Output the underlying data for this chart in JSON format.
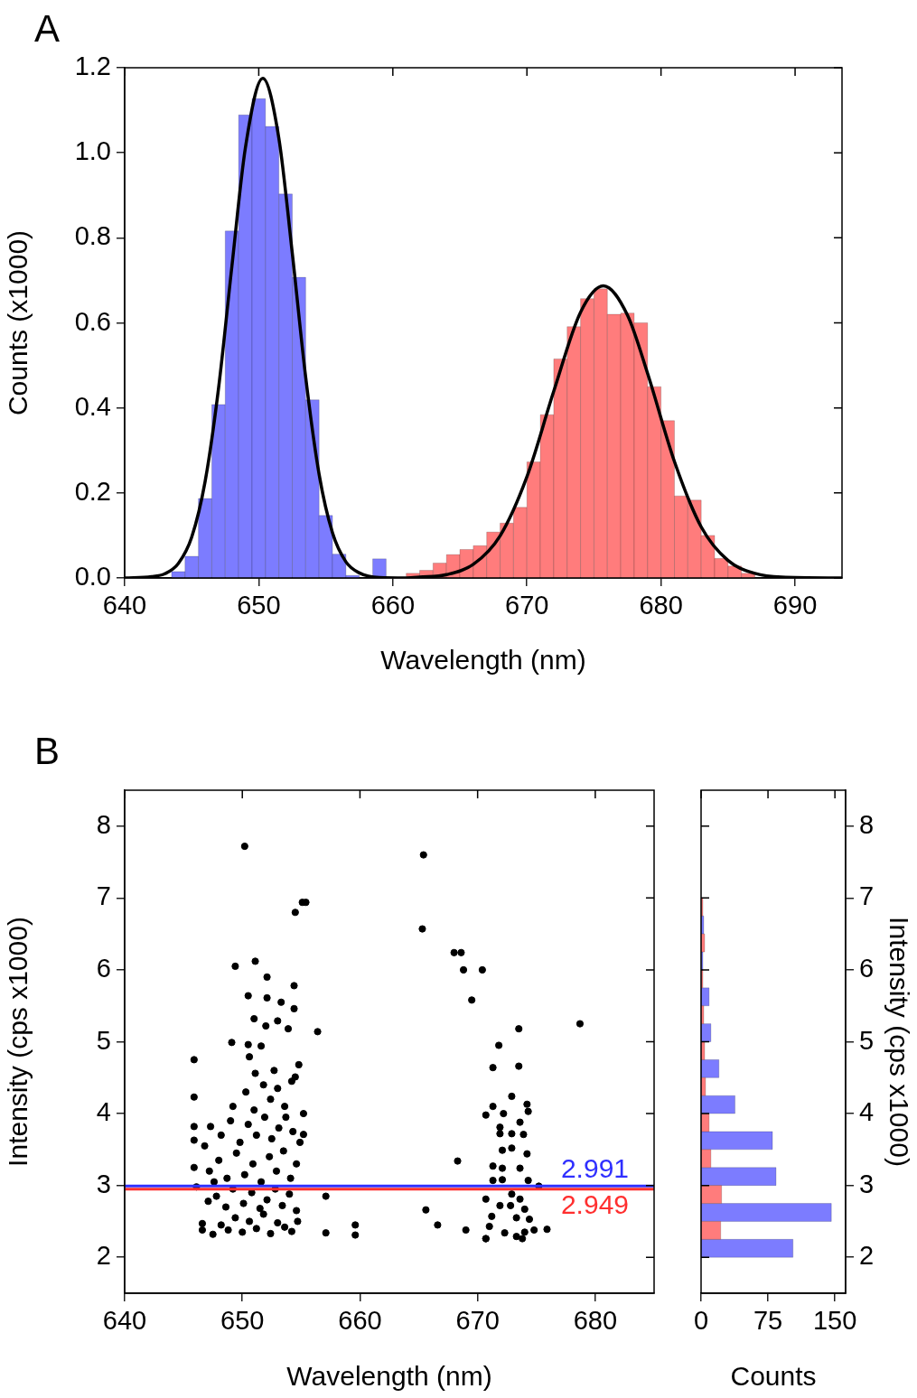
{
  "chart_data": [
    {
      "type": "histogram",
      "title": "A",
      "xlabel": "Wavelength (nm)",
      "ylabel": "Counts (x1000)",
      "xlim": [
        640,
        693.5
      ],
      "xticks": [
        640,
        650,
        660,
        670,
        680,
        690
      ],
      "ylim": [
        0,
        1.2
      ],
      "yticks": [
        {
          "value": 0,
          "label": "0.0"
        },
        0.2,
        0.4,
        0.6,
        0.8,
        {
          "value": 1,
          "label": "1.0"
        },
        1.2
      ],
      "grid": false,
      "series": [
        {
          "color": "#7c7cff",
          "bins": [
            643.5,
            644.5,
            645.5,
            646.5,
            647.5,
            648.5,
            649.5,
            650.5,
            651.5,
            652.5,
            653.5,
            654.5,
            655.5,
            656.5,
            657.5,
            658.5,
            659.5
          ],
          "values": [
            0.015,
            0.051,
            0.187,
            0.408,
            0.816,
            1.089,
            1.127,
            1.062,
            0.903,
            0.707,
            0.419,
            0.147,
            0.056,
            0.006,
            null,
            0.045
          ]
        },
        {
          "color": "#ff7c7c",
          "bins": [
            661,
            662,
            663,
            664,
            665,
            666,
            667,
            668,
            669,
            670,
            671,
            672,
            673,
            674,
            675,
            676,
            677,
            678,
            679,
            680,
            681,
            682,
            683,
            684,
            685,
            686,
            687
          ],
          "values": [
            0.011,
            0.018,
            0.035,
            0.055,
            0.067,
            0.076,
            0.108,
            0.129,
            0.166,
            0.273,
            0.384,
            0.515,
            0.591,
            0.657,
            0.68,
            0.62,
            0.623,
            0.6,
            0.45,
            0.37,
            0.193,
            0.183,
            0.1,
            0.046,
            0.028,
            0.011
          ]
        },
        {
          "type": "line",
          "color": "#000000",
          "x": [
            640,
            642,
            643,
            644,
            645,
            646,
            647,
            648,
            649,
            650.3,
            651.5,
            652.5,
            653.5,
            654.5,
            655.5,
            656.5,
            657.5,
            659,
            661,
            662,
            664,
            666,
            668,
            670,
            672,
            674,
            675.7,
            677.5,
            679,
            681,
            683,
            685,
            687,
            689,
            693.5
          ],
          "values": [
            0,
            0.003,
            0.01,
            0.034,
            0.096,
            0.227,
            0.446,
            0.734,
            1.011,
            1.175,
            1.034,
            0.764,
            0.472,
            0.244,
            0.106,
            0.038,
            0.012,
            0.001,
            0,
            0.002,
            0.008,
            0.032,
            0.099,
            0.238,
            0.439,
            0.625,
            0.687,
            0.618,
            0.481,
            0.274,
            0.12,
            0.041,
            0.011,
            0.002,
            0
          ]
        }
      ]
    },
    {
      "type": "scatter",
      "title": "B",
      "xlabel": "Wavelength (nm)",
      "ylabel": "Intensity (cps x1000)",
      "xlim": [
        640,
        685
      ],
      "xticks": [
        640,
        650,
        660,
        670,
        680
      ],
      "ylim": [
        1.5,
        8.5
      ],
      "yticks": [
        2,
        3,
        4,
        5,
        6,
        7,
        8
      ],
      "grid": false,
      "marker": "circle",
      "series": [
        {
          "color": "#000000",
          "x": [
            650.2,
            665.4,
            654.5,
            655.1,
            655.4,
            665.3,
            668.0,
            668.6,
            668.8,
            670.4,
            669.5,
            649.4,
            651.1,
            652.1,
            654.4,
            650.5,
            652.1,
            653.3,
            654.4,
            651.0,
            652.0,
            653.0,
            653.9,
            656.4,
            673.5,
            678.7,
            671.8,
            671.3,
            673.5,
            672.9,
            645.9,
            645.9,
            645.9,
            645.9,
            645.9,
            646.1,
            646.6,
            646.6,
            649.1,
            650.5,
            651.6,
            650.6,
            651.1,
            654.8,
            654.5,
            655.2,
            655.2,
            657.1,
            657.1,
            659.6,
            659.6,
            665.6,
            666.6,
            669.0,
            670.7,
            668.3,
            675.9,
            647.5,
            648.2,
            648.8,
            649.4,
            650.0,
            650.6,
            651.2,
            651.8,
            652.4,
            653.0,
            653.6,
            654.2,
            654.7,
            647.8,
            648.6,
            649.2,
            650.1,
            650.8,
            651.5,
            652.1,
            652.8,
            653.4,
            654.0,
            654.6,
            647.1,
            647.2,
            648.0,
            648.7,
            649.5,
            650.2,
            650.9,
            651.6,
            652.3,
            652.9,
            653.5,
            654.1,
            654.6,
            646.8,
            647.6,
            648.2,
            649.0,
            649.8,
            650.5,
            651.2,
            651.9,
            652.5,
            653.1,
            653.7,
            654.3,
            654.9,
            647.3,
            649.2,
            650.3,
            651.0,
            651.8,
            652.4,
            653.0,
            653.6,
            654.2,
            652.7,
            671.3,
            672.2,
            674.2,
            674.3,
            670.7,
            673.6,
            671.9,
            671.9,
            672.9,
            673.9,
            672.9,
            672.1,
            674.2,
            671.3,
            672.1,
            673.6,
            671.3,
            672.1,
            674.3,
            675.2,
            670.7,
            672.9,
            673.6,
            671.9,
            672.8,
            674.0,
            671.2,
            673.3,
            674.4,
            671.0,
            672.3,
            673.3,
            674.0,
            674.8,
            673.8,
            670.7
          ],
          "values": [
            7.72,
            7.6,
            6.8,
            6.94,
            6.94,
            6.57,
            6.24,
            6.24,
            6.0,
            6.0,
            5.58,
            6.05,
            6.12,
            5.9,
            5.78,
            5.64,
            5.61,
            5.55,
            5.46,
            5.32,
            5.22,
            5.29,
            5.18,
            5.14,
            5.18,
            5.25,
            4.95,
            4.64,
            4.66,
            4.24,
            4.75,
            4.23,
            3.82,
            3.63,
            3.25,
            2.98,
            2.47,
            2.38,
            4.99,
            4.96,
            4.94,
            4.79,
            4.56,
            4.68,
            4.51,
            4.0,
            3.71,
            2.85,
            2.34,
            2.45,
            2.31,
            2.66,
            2.45,
            2.38,
            2.26,
            3.34,
            2.39,
            2.32,
            2.45,
            2.38,
            2.55,
            2.35,
            2.5,
            2.4,
            2.6,
            2.33,
            2.48,
            2.42,
            2.36,
            2.5,
            2.85,
            2.7,
            2.95,
            2.75,
            2.9,
            2.68,
            2.8,
            2.95,
            2.72,
            2.88,
            2.65,
            2.78,
            3.2,
            3.35,
            3.1,
            3.45,
            3.15,
            3.3,
            3.05,
            3.4,
            3.2,
            3.48,
            3.1,
            3.3,
            3.55,
            3.05,
            3.7,
            3.9,
            3.6,
            3.85,
            3.7,
            3.95,
            3.65,
            3.8,
            3.95,
            3.75,
            3.6,
            3.82,
            4.1,
            4.3,
            4.05,
            4.4,
            4.2,
            4.35,
            4.1,
            4.45,
            4.6,
            4.1,
            4.0,
            4.13,
            4.03,
            3.98,
            3.88,
            3.81,
            3.72,
            3.72,
            3.71,
            3.52,
            3.49,
            3.44,
            3.27,
            3.24,
            3.24,
            3.07,
            3.08,
            3.07,
            2.99,
            2.81,
            2.88,
            2.81,
            2.72,
            2.72,
            2.67,
            2.57,
            2.55,
            2.53,
            2.43,
            2.34,
            2.29,
            2.35,
            2.38,
            2.26,
            2.26
          ]
        }
      ],
      "ref_lines": [
        {
          "axis": "y",
          "value": 2.991,
          "label": "2.991",
          "color": "#2f2fff"
        },
        {
          "axis": "y",
          "value": 2.949,
          "label": "2.949",
          "color": "#ff2f2f"
        }
      ]
    },
    {
      "type": "histogram",
      "orientation": "horizontal",
      "xlabel": "Counts",
      "ylabel": "Intensity (cps x1000)",
      "bins": [
        2,
        2.5,
        3,
        3.5,
        4,
        4.5,
        5,
        5.5,
        6,
        6.5,
        7
      ],
      "xlim": [
        0,
        162
      ],
      "xticks": [
        0,
        75,
        150
      ],
      "ylim": [
        1.5,
        8.5
      ],
      "yticks": [
        2,
        3,
        4,
        5,
        6,
        7,
        8
      ],
      "grid": false,
      "series": [
        {
          "color": "#7c7cff",
          "values": [
            103,
            146,
            84,
            80,
            38,
            20,
            11,
            9,
            2,
            3
          ]
        },
        {
          "color": "#ff7c7c",
          "values": [
            22,
            23,
            11,
            9,
            5,
            4,
            3,
            2,
            4,
            2
          ]
        }
      ]
    }
  ]
}
